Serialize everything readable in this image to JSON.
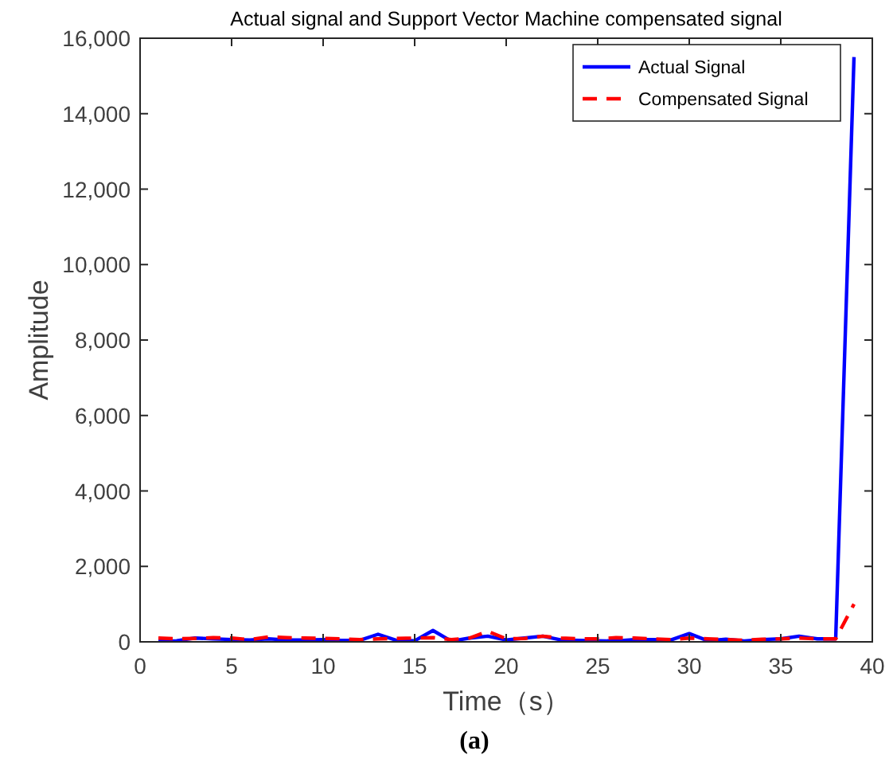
{
  "chart_data": {
    "type": "line",
    "title": "Actual signal and Support Vector Machine compensated signal",
    "xlabel": "Time（s）",
    "ylabel": "Amplitude",
    "annotations": [
      "(a)"
    ],
    "x": [
      1,
      2,
      3,
      4,
      5,
      6,
      7,
      8,
      9,
      10,
      11,
      12,
      13,
      14,
      15,
      16,
      17,
      18,
      19,
      20,
      21,
      22,
      23,
      24,
      25,
      26,
      27,
      28,
      29,
      30,
      31,
      32,
      33,
      34,
      35,
      36,
      37,
      38,
      39
    ],
    "series": [
      {
        "name": "Actual Signal",
        "color": "#0000ff",
        "line_style": "solid",
        "values": [
          20,
          30,
          100,
          80,
          60,
          50,
          80,
          50,
          50,
          60,
          40,
          40,
          200,
          40,
          30,
          300,
          20,
          100,
          150,
          50,
          100,
          150,
          50,
          40,
          30,
          20,
          60,
          60,
          50,
          220,
          30,
          70,
          20,
          60,
          80,
          150,
          80,
          80,
          15500
        ]
      },
      {
        "name": "Compensated Signal",
        "color": "#ff0000",
        "line_style": "dashed",
        "values": [
          100,
          80,
          90,
          110,
          100,
          60,
          130,
          110,
          100,
          90,
          80,
          60,
          80,
          90,
          100,
          110,
          60,
          100,
          280,
          80,
          90,
          150,
          100,
          80,
          80,
          110,
          100,
          80,
          60,
          100,
          80,
          60,
          40,
          70,
          80,
          100,
          80,
          80,
          1000
        ]
      }
    ],
    "xlim": [
      0,
      40
    ],
    "xticks": [
      0,
      5,
      10,
      15,
      20,
      25,
      30,
      35,
      40
    ],
    "ylim": [
      0,
      16000
    ],
    "yticks": [
      0,
      {
        "value": 2000,
        "label": "2,000"
      },
      {
        "value": 4000,
        "label": "4,000"
      },
      {
        "value": 6000,
        "label": "6,000"
      },
      {
        "value": 8000,
        "label": "8,000"
      },
      {
        "value": 10000,
        "label": "10,000"
      },
      {
        "value": 12000,
        "label": "12,000"
      },
      {
        "value": 14000,
        "label": "14,000"
      },
      {
        "value": 16000,
        "label": "16,000"
      }
    ],
    "grid": false,
    "legend": "top right",
    "marker": "none"
  }
}
